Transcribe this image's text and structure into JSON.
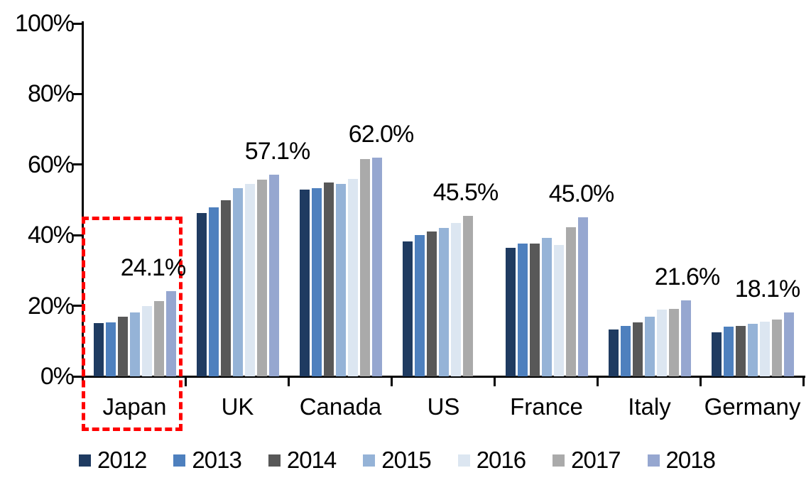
{
  "chart_data": {
    "type": "bar",
    "title": "",
    "xlabel": "",
    "ylabel": "",
    "unit": "percent",
    "ylim": [
      0,
      100
    ],
    "ytick_values": [
      0,
      20,
      40,
      60,
      80,
      100
    ],
    "ytick_labels": [
      "0%",
      "20%",
      "40%",
      "60%",
      "80%",
      "100%"
    ],
    "grid": false,
    "legend_position": "bottom",
    "categories": [
      "Japan",
      "UK",
      "Canada",
      "US",
      "France",
      "Italy",
      "Germany"
    ],
    "series": [
      {
        "name": "2012",
        "color": "#1f3b61",
        "values": [
          15.1,
          46.3,
          53.0,
          38.3,
          36.5,
          13.3,
          12.5
        ]
      },
      {
        "name": "2013",
        "color": "#4e80be",
        "values": [
          15.3,
          47.8,
          53.4,
          40.0,
          37.6,
          14.2,
          14.0
        ]
      },
      {
        "name": "2014",
        "color": "#585858",
        "values": [
          16.9,
          50.0,
          54.9,
          41.0,
          37.6,
          15.2,
          14.3
        ]
      },
      {
        "name": "2015",
        "color": "#95b3d7",
        "values": [
          18.2,
          53.3,
          54.6,
          42.0,
          39.2,
          16.9,
          14.8
        ]
      },
      {
        "name": "2016",
        "color": "#dce6f1",
        "values": [
          20.0,
          54.5,
          56.0,
          43.5,
          37.3,
          19.0,
          15.4
        ]
      },
      {
        "name": "2017",
        "color": "#aaaaaa",
        "values": [
          21.3,
          55.8,
          61.5,
          45.5,
          42.3,
          19.2,
          16.0
        ]
      },
      {
        "name": "2018",
        "color": "#96a7d0",
        "values": [
          24.1,
          57.1,
          62.0,
          null,
          45.0,
          21.6,
          18.1
        ]
      }
    ],
    "value_labels": [
      "24.1%",
      "57.1%",
      "62.0%",
      "45.5%",
      "45.0%",
      "21.6%",
      "18.1%"
    ],
    "legend": [
      "2012",
      "2013",
      "2014",
      "2015",
      "2016",
      "2017",
      "2018"
    ],
    "highlight": {
      "category": "Japan",
      "style": "red-dashed-box",
      "color": "#ff0000"
    },
    "notes": "US has no 2018 bar; its 45.5% label refers to its last (2017) bar."
  }
}
